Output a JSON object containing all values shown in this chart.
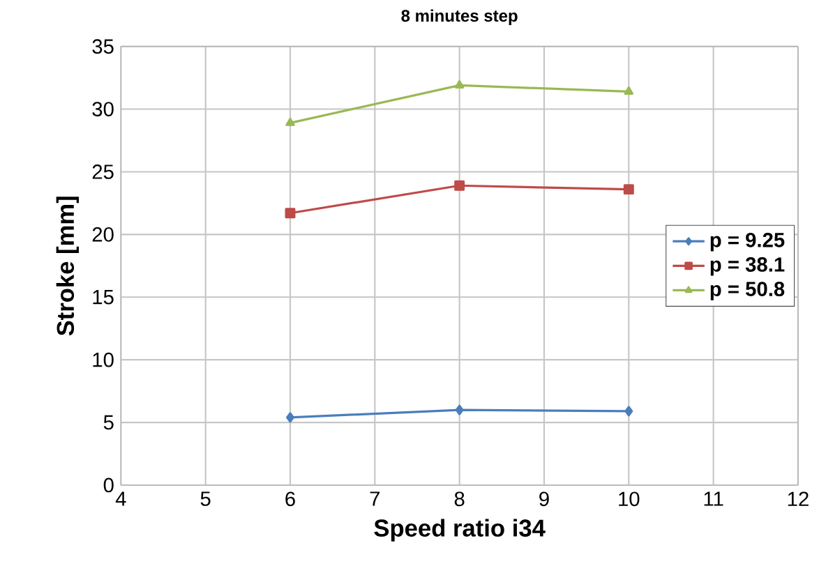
{
  "chart_data": {
    "type": "line",
    "title": "8 minutes step",
    "xlabel": "Speed ratio i34",
    "ylabel": "Stroke [mm]",
    "x": [
      6,
      8,
      10
    ],
    "series": [
      {
        "name": "p = 9.25",
        "color": "#4a7ebb",
        "marker": "diamond",
        "values": [
          5.4,
          6.0,
          5.9
        ]
      },
      {
        "name": "p = 38.1",
        "color": "#be4b48",
        "marker": "square",
        "values": [
          21.7,
          23.9,
          23.6
        ]
      },
      {
        "name": "p = 50.8",
        "color": "#98b954",
        "marker": "triangle",
        "values": [
          28.9,
          31.9,
          31.4
        ]
      }
    ],
    "xlim": [
      4,
      12
    ],
    "xticks": [
      4,
      5,
      6,
      7,
      8,
      9,
      10,
      11,
      12
    ],
    "ylim": [
      0,
      35
    ],
    "yticks": [
      0,
      5,
      10,
      15,
      20,
      25,
      30,
      35
    ],
    "grid": true,
    "legend": "right",
    "line_style": "solid"
  }
}
